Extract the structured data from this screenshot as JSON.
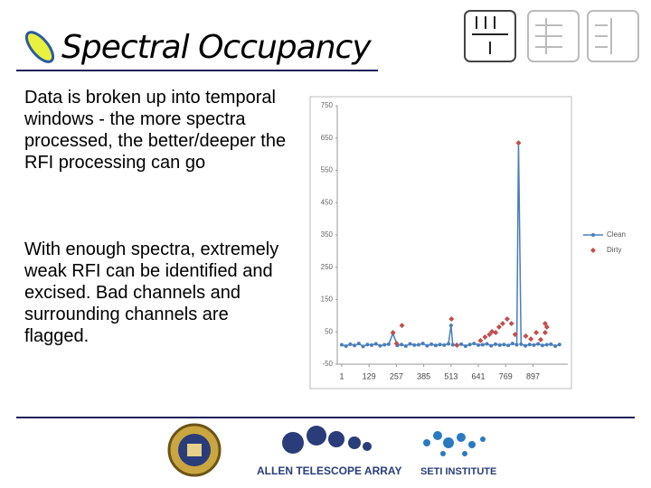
{
  "slide": {
    "title": "Spectral Occupancy",
    "paragraphs": [
      "Data is broken up into temporal windows - the more spectra processed, the better/deeper the RFI processing can go",
      "With enough spectra, extremely weak RFI can be identified and excised. Bad channels and surrounding channels are flagged."
    ],
    "logos": [
      "ALLEN TELESCOPE ARRAY",
      "SETI INSTITUTE"
    ]
  },
  "chart_data": {
    "type": "line",
    "xlim": [
      -20,
      1060
    ],
    "ylim": [
      -50,
      750
    ],
    "xticks": [
      1,
      129,
      257,
      385,
      513,
      641,
      769,
      897
    ],
    "yticks": [
      -50,
      50,
      150,
      250,
      350,
      450,
      550,
      650,
      750
    ],
    "legend": "right",
    "series": [
      {
        "name": "Clean",
        "color": "#4a7ebb",
        "marker": "circle",
        "x": [
          1,
          21,
          41,
          61,
          81,
          101,
          121,
          141,
          161,
          181,
          201,
          221,
          241,
          261,
          281,
          301,
          321,
          341,
          361,
          381,
          401,
          421,
          441,
          461,
          481,
          501,
          513,
          521,
          541,
          561,
          581,
          601,
          621,
          641,
          661,
          681,
          701,
          721,
          741,
          761,
          781,
          801,
          821,
          829,
          841,
          861,
          881,
          901,
          921,
          941,
          961,
          981,
          1001,
          1021
        ],
        "values": [
          10,
          6,
          12,
          8,
          14,
          5,
          11,
          9,
          13,
          7,
          10,
          12,
          45,
          8,
          11,
          6,
          13,
          9,
          10,
          14,
          7,
          12,
          8,
          11,
          9,
          13,
          70,
          10,
          8,
          12,
          6,
          11,
          14,
          9,
          10,
          13,
          7,
          12,
          9,
          11,
          8,
          14,
          10,
          635,
          12,
          7,
          11,
          9,
          13,
          8,
          10,
          12,
          6,
          11
        ]
      },
      {
        "name": "Dirty",
        "color": "#c0504d",
        "marker": "diamond",
        "x": [
          241,
          258,
          283,
          515,
          540,
          651,
          672,
          693,
          705,
          722,
          738,
          755,
          776,
          796,
          813,
          829,
          863,
          887,
          912,
          933,
          954,
          954,
          962
        ],
        "values": [
          48,
          14,
          70,
          90,
          9,
          23,
          34,
          42,
          51,
          48,
          65,
          76,
          90,
          76,
          42,
          635,
          37,
          28,
          48,
          26,
          76,
          48,
          65
        ]
      }
    ]
  }
}
